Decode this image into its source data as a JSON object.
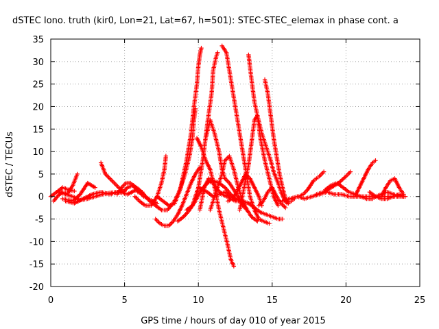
{
  "chart_data": {
    "type": "scatter",
    "title": "dSTEC Iono. truth (kir0, Lon=21, Lat=67, h=501): STEC-STEC_elemax in phase cont. a",
    "xlabel": "GPS time / hours of day 010 of year 2015",
    "ylabel": "dSTEC  / TECUs",
    "xlim": [
      0,
      25
    ],
    "ylim": [
      -20,
      35
    ],
    "xticks": [
      "0",
      "5",
      "10",
      "15",
      "20",
      "25"
    ],
    "yticks": [
      "35",
      "30",
      "25",
      "20",
      "15",
      "10",
      "5",
      "0",
      "-5",
      "-10",
      "-15",
      "-20"
    ],
    "grid": true,
    "marker": "+",
    "color": "#ff0000",
    "arcs": [
      {
        "x": [
          0.0,
          0.4,
          0.8,
          1.2,
          1.6
        ],
        "y": [
          0.0,
          1.0,
          2.0,
          1.5,
          1.2
        ]
      },
      {
        "x": [
          0.2,
          0.5,
          0.8,
          1.1,
          1.5,
          1.8
        ],
        "y": [
          -1.0,
          0.2,
          1.0,
          0.5,
          2.5,
          5.0
        ]
      },
      {
        "x": [
          0.5,
          1.0,
          1.5,
          2.0,
          2.5,
          3.0,
          3.5,
          4.0,
          4.5,
          5.0
        ],
        "y": [
          1.0,
          0.5,
          0.0,
          -0.8,
          -0.5,
          0.0,
          0.5,
          0.8,
          1.0,
          1.2
        ]
      },
      {
        "x": [
          0.8,
          1.5,
          2.0,
          2.5,
          3.0
        ],
        "y": [
          -0.5,
          -1.0,
          0.5,
          3.0,
          2.0
        ]
      },
      {
        "x": [
          1.0,
          1.6,
          2.2,
          2.8,
          3.4,
          4.0,
          4.6,
          5.2,
          5.8,
          6.2
        ],
        "y": [
          -1.0,
          -1.5,
          -0.5,
          0.5,
          1.0,
          0.5,
          1.0,
          0.5,
          1.5,
          1.0
        ]
      },
      {
        "x": [
          3.4,
          3.7,
          4.0,
          4.3,
          4.6,
          4.9,
          5.2,
          5.6,
          6.0,
          6.3
        ],
        "y": [
          7.5,
          5.0,
          4.0,
          3.0,
          2.0,
          1.0,
          2.0,
          2.5,
          1.5,
          0.5
        ]
      },
      {
        "x": [
          4.5,
          4.8,
          5.1,
          5.4,
          5.7,
          6.0,
          6.3,
          6.6,
          6.9,
          7.2
        ],
        "y": [
          0.5,
          2.0,
          3.0,
          3.0,
          2.0,
          1.0,
          0.0,
          -0.5,
          -1.0,
          -1.5
        ]
      },
      {
        "x": [
          5.7,
          6.0,
          6.4,
          6.8,
          7.2,
          7.5,
          7.7,
          7.8
        ],
        "y": [
          0.0,
          -1.0,
          -2.0,
          -2.0,
          0.0,
          3.0,
          6.0,
          9.0
        ]
      },
      {
        "x": [
          5.9,
          6.3,
          6.7,
          7.1,
          7.5,
          7.9,
          8.3,
          8.7,
          9.1,
          9.4,
          9.6,
          9.7,
          9.8
        ],
        "y": [
          1.0,
          0.5,
          -1.0,
          -2.0,
          -3.0,
          -3.0,
          -1.5,
          1.0,
          5.0,
          9.0,
          13.0,
          17.0,
          19.5
        ]
      },
      {
        "x": [
          7.1,
          7.4,
          7.7,
          8.0,
          8.3,
          8.6,
          8.9,
          9.2,
          9.5,
          9.8,
          10.1
        ],
        "y": [
          -5.0,
          -6.0,
          -6.5,
          -6.5,
          -5.5,
          -4.0,
          -2.0,
          0.5,
          3.0,
          5.0,
          6.5
        ]
      },
      {
        "x": [
          7.2,
          7.6,
          8.0,
          8.4,
          8.8,
          9.2,
          9.5,
          9.7,
          9.9,
          10.0,
          10.1,
          10.2
        ],
        "y": [
          0.0,
          -1.0,
          -2.0,
          -1.5,
          2.0,
          8.0,
          14.0,
          20.0,
          25.0,
          29.0,
          31.5,
          33.0
        ]
      },
      {
        "x": [
          8.6,
          9.0,
          9.4,
          9.8,
          10.2,
          10.6,
          11.0,
          11.4,
          11.8,
          12.2,
          12.6,
          13.0
        ],
        "y": [
          -5.5,
          -4.5,
          -3.0,
          -1.0,
          1.5,
          3.0,
          3.5,
          3.0,
          2.0,
          0.5,
          -1.0,
          -1.0
        ]
      },
      {
        "x": [
          9.2,
          9.6,
          10.0,
          10.3,
          10.6,
          10.9,
          11.0,
          11.2,
          11.3
        ],
        "y": [
          -3.0,
          -2.0,
          2.0,
          8.0,
          16.0,
          23.0,
          28.0,
          31.0,
          32.0
        ]
      },
      {
        "x": [
          9.9,
          10.2,
          10.5,
          10.8,
          11.1,
          11.4,
          11.7,
          12.0,
          12.2,
          12.4
        ],
        "y": [
          13.0,
          11.0,
          8.0,
          6.0,
          2.0,
          -3.0,
          -7.0,
          -11.0,
          -14.0,
          -15.5
        ]
      },
      {
        "x": [
          10.1,
          10.4,
          10.7,
          11.0,
          11.3,
          11.6,
          11.9,
          12.2,
          12.5
        ],
        "y": [
          -3.0,
          2.0,
          4.0,
          3.0,
          1.5,
          0.5,
          0.0,
          -0.5,
          -1.0
        ]
      },
      {
        "x": [
          10.0,
          10.6,
          11.0,
          11.4,
          11.8,
          12.2,
          12.6,
          13.0,
          13.4,
          13.8,
          14.2,
          14.6,
          15.0,
          15.4,
          15.7
        ],
        "y": [
          2.0,
          1.0,
          0.0,
          0.5,
          1.0,
          0.0,
          -0.5,
          -1.0,
          -1.5,
          -2.5,
          -3.5,
          -4.0,
          -4.5,
          -5.0,
          -5.0
        ]
      },
      {
        "x": [
          10.5,
          10.8,
          11.1,
          11.4,
          11.6,
          11.8,
          12.1,
          12.4,
          12.7,
          13.0,
          13.3
        ],
        "y": [
          13.0,
          17.0,
          14.0,
          10.0,
          6.0,
          4.0,
          3.0,
          1.5,
          0.0,
          -2.0,
          -3.0
        ]
      },
      {
        "x": [
          10.8,
          11.1,
          11.4,
          11.6,
          11.8,
          12.1,
          12.4,
          12.7,
          13.0,
          13.3,
          13.6,
          14.0
        ],
        "y": [
          -3.0,
          0.0,
          3.0,
          5.0,
          8.0,
          9.0,
          6.0,
          2.0,
          -1.0,
          -3.0,
          -4.5,
          -5.5
        ]
      },
      {
        "x": [
          11.6,
          11.9,
          12.1,
          12.3,
          12.5,
          12.7,
          12.9,
          13.1,
          13.3,
          13.5,
          13.8,
          14.1,
          14.4,
          14.8
        ],
        "y": [
          33.5,
          32.0,
          28.0,
          24.0,
          20.0,
          16.0,
          12.0,
          8.0,
          4.0,
          0.0,
          -3.0,
          -5.0,
          -5.5,
          -6.0
        ]
      },
      {
        "x": [
          12.0,
          12.3,
          12.6,
          12.9,
          13.2,
          13.5,
          13.8,
          14.1,
          14.3
        ],
        "y": [
          -1.0,
          -0.5,
          1.0,
          3.0,
          5.0,
          4.0,
          2.0,
          0.0,
          -2.0
        ]
      },
      {
        "x": [
          12.8,
          13.1,
          13.4,
          13.6,
          13.8,
          14.0,
          14.2,
          14.5,
          14.8,
          15.1,
          15.4
        ],
        "y": [
          -3.0,
          2.0,
          7.0,
          12.0,
          17.0,
          18.0,
          13.0,
          8.0,
          4.0,
          0.0,
          -2.0
        ]
      },
      {
        "x": [
          13.4,
          13.6,
          13.8,
          14.0,
          14.3,
          14.6,
          14.9,
          15.1,
          15.4,
          15.6,
          15.8,
          16.0
        ],
        "y": [
          31.5,
          26.0,
          21.0,
          18.0,
          14.0,
          11.0,
          8.0,
          5.5,
          3.0,
          1.0,
          -0.5,
          -1.5
        ]
      },
      {
        "x": [
          14.1,
          14.4,
          14.7,
          15.0,
          15.3,
          15.6,
          15.9
        ],
        "y": [
          -2.0,
          -1.0,
          1.0,
          2.0,
          0.0,
          -1.5,
          -2.5
        ]
      },
      {
        "x": [
          14.5,
          14.7,
          14.9,
          15.1,
          15.3,
          15.5,
          15.7,
          15.9,
          16.1,
          16.3,
          16.5
        ],
        "y": [
          26.0,
          23.0,
          18.0,
          13.0,
          9.0,
          5.0,
          2.0,
          -0.5,
          -1.5,
          -1.0,
          -0.5
        ]
      },
      {
        "x": [
          15.7,
          16.2,
          16.7,
          17.2,
          17.7,
          18.2,
          18.7,
          19.2,
          19.7,
          20.2,
          20.7,
          21.2,
          21.7,
          22.2,
          22.7,
          23.2,
          23.7,
          24.0
        ],
        "y": [
          -1.0,
          -0.5,
          0.0,
          -0.5,
          0.0,
          0.5,
          1.0,
          0.5,
          0.5,
          0.0,
          0.0,
          0.0,
          0.0,
          0.0,
          0.0,
          0.0,
          0.0,
          0.0
        ]
      },
      {
        "x": [
          16.8,
          17.1,
          17.4,
          17.6,
          17.8,
          18.0,
          18.2,
          18.5
        ],
        "y": [
          0.0,
          0.5,
          1.5,
          2.5,
          3.5,
          4.0,
          4.5,
          5.5
        ]
      },
      {
        "x": [
          18.0,
          18.5,
          19.0,
          19.5,
          20.0,
          20.3
        ],
        "y": [
          0.5,
          1.0,
          2.0,
          3.0,
          4.5,
          5.5
        ]
      },
      {
        "x": [
          18.6,
          19.0,
          19.4,
          19.8,
          20.2,
          20.6,
          21.0,
          21.4,
          21.8,
          22.0
        ],
        "y": [
          1.5,
          2.5,
          3.0,
          2.0,
          1.0,
          0.5,
          0.0,
          -0.5,
          -0.5,
          0.0
        ]
      },
      {
        "x": [
          20.6,
          20.9,
          21.2,
          21.5,
          21.8,
          22.0
        ],
        "y": [
          0.0,
          2.0,
          4.0,
          6.0,
          7.5,
          8.0
        ]
      },
      {
        "x": [
          21.6,
          22.0,
          22.4,
          22.8,
          23.2,
          23.6,
          23.9
        ],
        "y": [
          1.0,
          0.0,
          -0.5,
          -0.5,
          0.0,
          0.5,
          0.0
        ]
      },
      {
        "x": [
          22.4,
          22.7,
          23.0,
          23.3,
          23.6,
          23.9
        ],
        "y": [
          0.0,
          2.0,
          3.5,
          4.0,
          2.0,
          0.5
        ]
      },
      {
        "x": [
          22.0,
          22.4,
          22.8,
          23.2,
          23.6,
          24.0
        ],
        "y": [
          0.0,
          0.5,
          1.0,
          0.5,
          0.2,
          0.0
        ]
      }
    ]
  }
}
